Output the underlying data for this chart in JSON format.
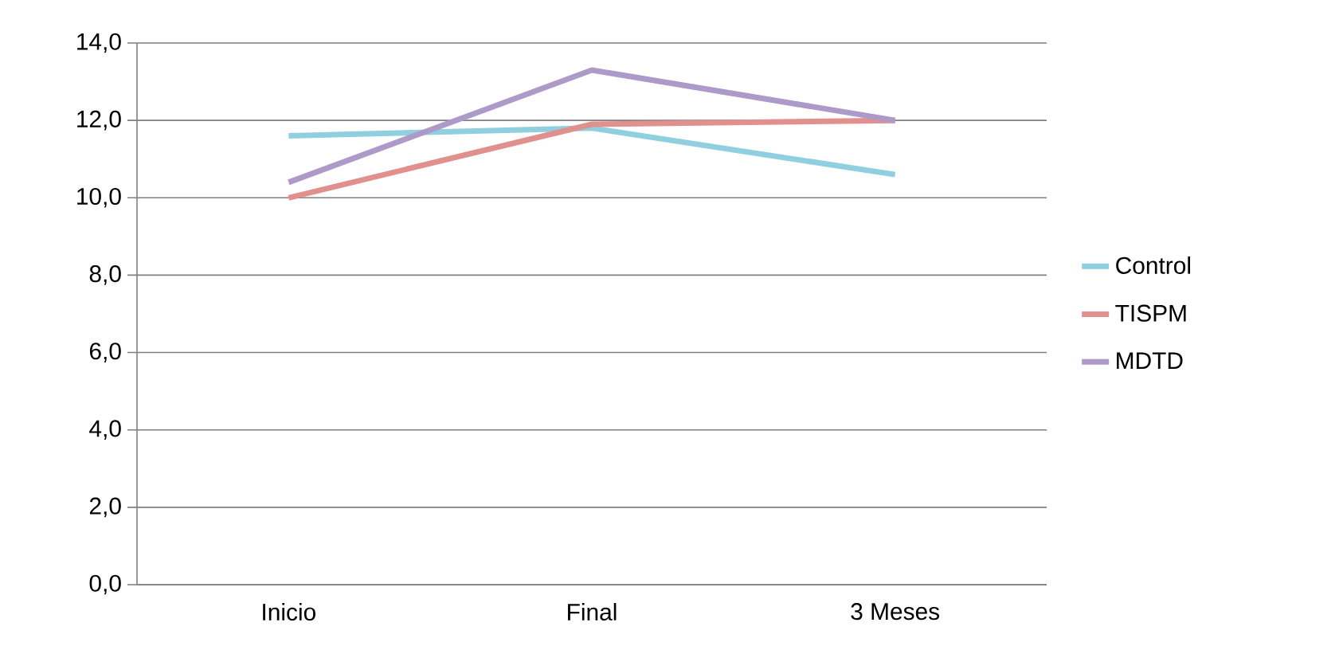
{
  "chart_data": {
    "type": "line",
    "categories": [
      "Inicio",
      "Final",
      "3 Meses"
    ],
    "series": [
      {
        "name": "Control",
        "color": "#8fcfdf",
        "values": [
          11.6,
          11.8,
          10.6
        ]
      },
      {
        "name": "TISPM",
        "color": "#e0918d",
        "values": [
          10.0,
          11.9,
          12.0
        ]
      },
      {
        "name": "MDTD",
        "color": "#ad9ac8",
        "values": [
          10.4,
          13.3,
          12.0
        ]
      }
    ],
    "ylim": [
      0,
      14
    ],
    "yticks": [
      {
        "value": 0,
        "label": "0,0"
      },
      {
        "value": 2,
        "label": "2,0"
      },
      {
        "value": 4,
        "label": "4,0"
      },
      {
        "value": 6,
        "label": "6,0"
      },
      {
        "value": 8,
        "label": "8,0"
      },
      {
        "value": 10,
        "label": "10,0"
      },
      {
        "value": 12,
        "label": "12,0"
      },
      {
        "value": 14,
        "label": "14,0"
      }
    ],
    "grid": "y",
    "legend": "right",
    "marker": "none",
    "line_style": "solid"
  }
}
